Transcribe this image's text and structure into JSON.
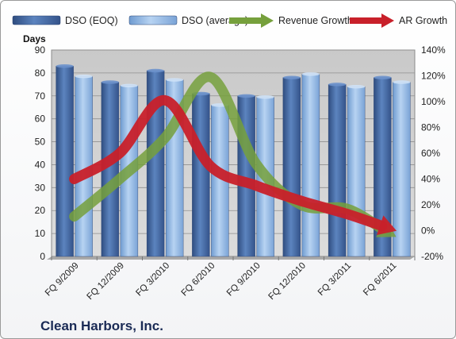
{
  "chart_data": {
    "type": "bar",
    "title": "Clean Harbors, Inc.",
    "ylabel": "Days",
    "categories": [
      "FQ 9/2009",
      "FQ 12/2009",
      "FQ 3/2010",
      "FQ 6/2010",
      "FQ 9/2010",
      "FQ 12/2010",
      "FQ 3/2011",
      "FQ 6/2011"
    ],
    "series": [
      {
        "name": "DSO (EOQ)",
        "axis": "left",
        "kind": "bar",
        "color": "#4a6fa8",
        "values": [
          83,
          76,
          81,
          71,
          70,
          78,
          75,
          78
        ]
      },
      {
        "name": "DSO (average)",
        "axis": "left",
        "kind": "bar",
        "color": "#8eb4e0",
        "values": [
          78.5,
          74.5,
          77,
          66,
          69.5,
          79.5,
          74,
          76
        ]
      },
      {
        "name": "Revenue Growth",
        "axis": "right",
        "kind": "line",
        "color": "#76a03c",
        "values": [
          0.11,
          0.4,
          0.72,
          1.19,
          0.52,
          0.2,
          0.17,
          -0.03
        ]
      },
      {
        "name": "AR Growth",
        "axis": "right",
        "kind": "line",
        "color": "#c8202a",
        "values": [
          0.4,
          0.6,
          1.01,
          0.5,
          0.35,
          0.23,
          0.13,
          0.01
        ]
      }
    ],
    "y_left": {
      "min": 0,
      "max": 90,
      "step": 10,
      "ticks": [
        "0",
        "10",
        "20",
        "30",
        "40",
        "50",
        "60",
        "70",
        "80",
        "90"
      ]
    },
    "y_right": {
      "min": -0.2,
      "max": 1.4,
      "step": 0.2,
      "ticks": [
        "-20%",
        "0%",
        "20%",
        "40%",
        "60%",
        "80%",
        "100%",
        "120%",
        "140%"
      ]
    },
    "grid": true,
    "legend_position": "top"
  }
}
